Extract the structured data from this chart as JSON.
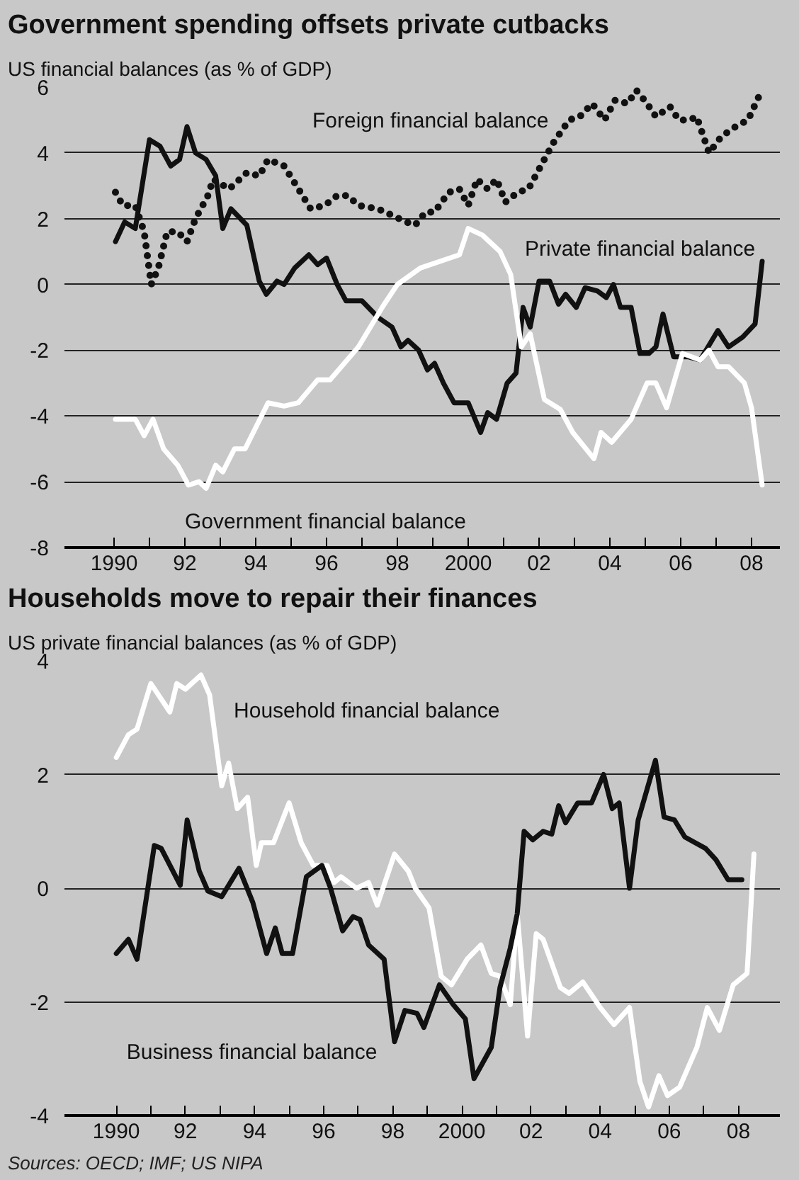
{
  "chart_data": [
    {
      "type": "line",
      "title": "Government spending offsets private cutbacks",
      "subtitle": "US financial balances (as % of GDP)",
      "xlim": [
        1988.6,
        2008.8
      ],
      "ylim": [
        -8,
        6
      ],
      "xticks": [
        {
          "value": 1990,
          "label": "1990"
        },
        {
          "value": 1991,
          "label": null
        },
        {
          "value": 1992,
          "label": "92"
        },
        {
          "value": 1993,
          "label": null
        },
        {
          "value": 1994,
          "label": "94"
        },
        {
          "value": 1995,
          "label": null
        },
        {
          "value": 1996,
          "label": "96"
        },
        {
          "value": 1997,
          "label": null
        },
        {
          "value": 1998,
          "label": "98"
        },
        {
          "value": 1999,
          "label": null
        },
        {
          "value": 2000,
          "label": "2000"
        },
        {
          "value": 2001,
          "label": null
        },
        {
          "value": 2002,
          "label": "02"
        },
        {
          "value": 2003,
          "label": null
        },
        {
          "value": 2004,
          "label": "04"
        },
        {
          "value": 2005,
          "label": null
        },
        {
          "value": 2006,
          "label": "06"
        },
        {
          "value": 2007,
          "label": null
        },
        {
          "value": 2008,
          "label": "08"
        }
      ],
      "yticks": [
        -8,
        -6,
        -4,
        -2,
        0,
        2,
        4,
        6
      ],
      "grid": "y",
      "series": [
        {
          "name": "Foreign financial balance",
          "color": "#111111",
          "line_style": "dotted",
          "x": [
            1990.04,
            1990.25,
            1990.6,
            1990.85,
            1991.05,
            1991.25,
            1991.5,
            1991.8,
            1992.06,
            1992.3,
            1992.65,
            1992.8,
            1993.25,
            1993.75,
            1994.1,
            1994.35,
            1994.8,
            1995.15,
            1995.55,
            1995.95,
            1996.3,
            1996.6,
            1996.9,
            1997.45,
            1997.85,
            1998.25,
            1998.5,
            1998.8,
            1999.05,
            1999.45,
            1999.75,
            2000.0,
            2000.25,
            2000.55,
            2000.8,
            2001.05,
            2001.4,
            2001.7,
            2002.0,
            2002.4,
            2002.85,
            2003.15,
            2003.5,
            2003.85,
            2004.15,
            2004.5,
            2004.75,
            2005.05,
            2005.3,
            2005.7,
            2005.95,
            2006.25,
            2006.45,
            2006.8,
            2007.15,
            2007.55,
            2007.9,
            2008.2
          ],
          "values": [
            2.8,
            2.4,
            2.4,
            1.6,
            0.0,
            0.5,
            1.6,
            1.6,
            1.3,
            2.0,
            2.7,
            3.2,
            2.9,
            3.4,
            3.3,
            3.8,
            3.6,
            3.0,
            2.3,
            2.4,
            2.7,
            2.7,
            2.4,
            2.3,
            2.1,
            1.9,
            1.8,
            2.2,
            2.2,
            2.8,
            2.9,
            2.4,
            3.2,
            2.9,
            3.2,
            2.5,
            2.8,
            2.9,
            3.5,
            4.3,
            5.0,
            5.1,
            5.5,
            5.0,
            5.6,
            5.5,
            5.9,
            5.5,
            5.1,
            5.4,
            5.0,
            5.0,
            5.1,
            4.0,
            4.5,
            4.8,
            5.0,
            5.7
          ]
        },
        {
          "name": "Private financial balance",
          "color": "#111111",
          "line_style": "solid",
          "x": [
            1990.04,
            1990.3,
            1990.6,
            1991.0,
            1991.3,
            1991.6,
            1991.85,
            1992.06,
            1992.3,
            1992.6,
            1992.87,
            1993.07,
            1993.3,
            1993.75,
            1994.1,
            1994.3,
            1994.6,
            1994.8,
            1995.1,
            1995.5,
            1995.75,
            1996.0,
            1996.3,
            1996.55,
            1997.0,
            1997.45,
            1997.85,
            1998.1,
            1998.3,
            1998.6,
            1998.85,
            1999.05,
            1999.3,
            1999.6,
            2000.0,
            2000.35,
            2000.55,
            2000.8,
            2001.1,
            2001.35,
            2001.55,
            2001.75,
            2002.0,
            2002.3,
            2002.55,
            2002.75,
            2003.05,
            2003.3,
            2003.65,
            2003.9,
            2004.1,
            2004.3,
            2004.6,
            2004.85,
            2005.1,
            2005.3,
            2005.5,
            2005.8,
            2006.2,
            2006.55,
            2007.05,
            2007.35,
            2007.75,
            2008.1,
            2008.3
          ],
          "values": [
            1.3,
            1.9,
            1.7,
            4.4,
            4.2,
            3.6,
            3.8,
            4.8,
            4.0,
            3.8,
            3.3,
            1.7,
            2.3,
            1.8,
            0.1,
            -0.3,
            0.1,
            0.0,
            0.5,
            0.9,
            0.6,
            0.8,
            0.0,
            -0.5,
            -0.5,
            -1.0,
            -1.3,
            -1.9,
            -1.7,
            -2.0,
            -2.6,
            -2.4,
            -3.0,
            -3.6,
            -3.6,
            -4.5,
            -3.9,
            -4.1,
            -3.0,
            -2.7,
            -0.7,
            -1.3,
            0.1,
            0.1,
            -0.6,
            -0.3,
            -0.7,
            -0.1,
            -0.2,
            -0.4,
            0.0,
            -0.7,
            -0.7,
            -2.1,
            -2.1,
            -1.9,
            -0.9,
            -2.2,
            -2.2,
            -2.3,
            -1.4,
            -1.9,
            -1.6,
            -1.2,
            0.7
          ]
        },
        {
          "name": "Government financial balance",
          "color": "#ffffff",
          "line_style": "solid",
          "x": [
            1990.04,
            1990.6,
            1990.85,
            1991.1,
            1991.4,
            1991.8,
            1992.1,
            1992.4,
            1992.6,
            1992.87,
            1993.07,
            1993.4,
            1993.7,
            1994.35,
            1994.8,
            1995.2,
            1995.75,
            1996.1,
            1996.9,
            1997.6,
            1998.0,
            1998.65,
            1999.75,
            2000.0,
            2000.4,
            2000.9,
            2001.2,
            2001.5,
            2001.75,
            2002.15,
            2002.6,
            2002.95,
            2003.55,
            2003.75,
            2004.05,
            2004.6,
            2005.05,
            2005.3,
            2005.6,
            2006.05,
            2006.55,
            2006.8,
            2007.05,
            2007.35,
            2007.8,
            2008.0,
            2008.3
          ],
          "values": [
            -4.1,
            -4.1,
            -4.6,
            -4.1,
            -5.0,
            -5.5,
            -6.1,
            -6.0,
            -6.2,
            -5.5,
            -5.7,
            -5.0,
            -5.0,
            -3.6,
            -3.7,
            -3.6,
            -2.9,
            -2.9,
            -1.9,
            -0.65,
            0.0,
            0.5,
            0.9,
            1.7,
            1.5,
            1.0,
            0.3,
            -1.9,
            -1.5,
            -3.5,
            -3.8,
            -4.5,
            -5.3,
            -4.5,
            -4.8,
            -4.1,
            -3.0,
            -3.0,
            -3.75,
            -2.1,
            -2.3,
            -2.0,
            -2.5,
            -2.5,
            -3.0,
            -3.75,
            -6.1
          ]
        }
      ]
    },
    {
      "type": "line",
      "title": "Households move to repair their finances",
      "subtitle": "US private financial balances (as % of GDP)",
      "xlim": [
        1988.5,
        2009.2
      ],
      "ylim": [
        -4,
        4
      ],
      "xticks": [
        {
          "value": 1990,
          "label": "1990"
        },
        {
          "value": 1991,
          "label": null
        },
        {
          "value": 1992,
          "label": "92"
        },
        {
          "value": 1993,
          "label": null
        },
        {
          "value": 1994,
          "label": "94"
        },
        {
          "value": 1995,
          "label": null
        },
        {
          "value": 1996,
          "label": "96"
        },
        {
          "value": 1997,
          "label": null
        },
        {
          "value": 1998,
          "label": "98"
        },
        {
          "value": 1999,
          "label": null
        },
        {
          "value": 2000,
          "label": "2000"
        },
        {
          "value": 2001,
          "label": null
        },
        {
          "value": 2002,
          "label": "02"
        },
        {
          "value": 2003,
          "label": null
        },
        {
          "value": 2004,
          "label": "04"
        },
        {
          "value": 2005,
          "label": null
        },
        {
          "value": 2006,
          "label": "06"
        },
        {
          "value": 2007,
          "label": null
        },
        {
          "value": 2008,
          "label": "08"
        }
      ],
      "yticks": [
        -4,
        -2,
        0,
        2,
        4
      ],
      "grid": "y",
      "annotations": [
        "Sources: OECD; IMF; US NIPA"
      ],
      "series": [
        {
          "name": "Household financial balance",
          "color": "#ffffff",
          "line_style": "solid",
          "x": [
            1990.0,
            1990.35,
            1990.6,
            1991.0,
            1991.55,
            1991.75,
            1992.0,
            1992.45,
            1992.7,
            1993.05,
            1993.25,
            1993.5,
            1993.8,
            1994.05,
            1994.2,
            1994.55,
            1995.0,
            1995.35,
            1995.7,
            1996.1,
            1996.3,
            1996.5,
            1996.95,
            1997.3,
            1997.55,
            1998.05,
            1998.45,
            1998.65,
            1999.05,
            1999.4,
            1999.7,
            2000.15,
            2000.55,
            2000.85,
            2001.1,
            2001.4,
            2001.6,
            2001.9,
            2002.15,
            2002.35,
            2002.85,
            2003.1,
            2003.5,
            2004.0,
            2004.4,
            2004.85,
            2005.15,
            2005.4,
            2005.7,
            2005.95,
            2006.3,
            2006.8,
            2007.1,
            2007.45,
            2007.85,
            2008.25,
            2008.45
          ],
          "values": [
            2.3,
            2.7,
            2.8,
            3.6,
            3.1,
            3.6,
            3.5,
            3.75,
            3.4,
            1.8,
            2.2,
            1.4,
            1.6,
            0.4,
            0.8,
            0.8,
            1.5,
            0.8,
            0.4,
            0.4,
            0.1,
            0.2,
            0.0,
            0.1,
            -0.3,
            0.6,
            0.3,
            0.0,
            -0.35,
            -1.55,
            -1.7,
            -1.25,
            -1.0,
            -1.5,
            -1.55,
            -2.05,
            -0.45,
            -2.6,
            -0.8,
            -0.9,
            -1.75,
            -1.85,
            -1.65,
            -2.1,
            -2.4,
            -2.1,
            -3.4,
            -3.85,
            -3.3,
            -3.65,
            -3.5,
            -2.8,
            -2.1,
            -2.5,
            -1.7,
            -1.5,
            0.6
          ]
        },
        {
          "name": "Business financial balance",
          "color": "#111111",
          "line_style": "solid",
          "x": [
            1990.0,
            1990.35,
            1990.6,
            1991.1,
            1991.3,
            1991.85,
            1992.05,
            1992.4,
            1992.65,
            1993.05,
            1993.55,
            1993.95,
            1994.35,
            1994.6,
            1994.8,
            1995.1,
            1995.5,
            1995.95,
            1996.2,
            1996.55,
            1996.85,
            1997.05,
            1997.3,
            1997.75,
            1998.05,
            1998.35,
            1998.7,
            1998.9,
            1999.35,
            1999.75,
            2000.1,
            2000.35,
            2000.85,
            2001.1,
            2001.4,
            2001.6,
            2001.8,
            2002.05,
            2002.35,
            2002.6,
            2002.8,
            2003.0,
            2003.35,
            2003.75,
            2004.1,
            2004.35,
            2004.55,
            2004.85,
            2005.1,
            2005.6,
            2005.85,
            2006.15,
            2006.45,
            2007.05,
            2007.35,
            2007.7,
            2008.1
          ],
          "values": [
            -1.15,
            -0.9,
            -1.25,
            0.75,
            0.7,
            0.05,
            1.2,
            0.3,
            -0.05,
            -0.15,
            0.35,
            -0.25,
            -1.15,
            -0.7,
            -1.15,
            -1.15,
            0.2,
            0.4,
            0.0,
            -0.75,
            -0.5,
            -0.55,
            -1.0,
            -1.25,
            -2.7,
            -2.15,
            -2.2,
            -2.45,
            -1.7,
            -2.05,
            -2.3,
            -3.35,
            -2.8,
            -1.75,
            -1.05,
            -0.45,
            1.0,
            0.85,
            1.0,
            0.95,
            1.45,
            1.15,
            1.5,
            1.5,
            2.0,
            1.4,
            1.5,
            0.0,
            1.2,
            2.25,
            1.25,
            1.2,
            0.9,
            0.7,
            0.5,
            0.15,
            0.15
          ]
        }
      ]
    }
  ]
}
